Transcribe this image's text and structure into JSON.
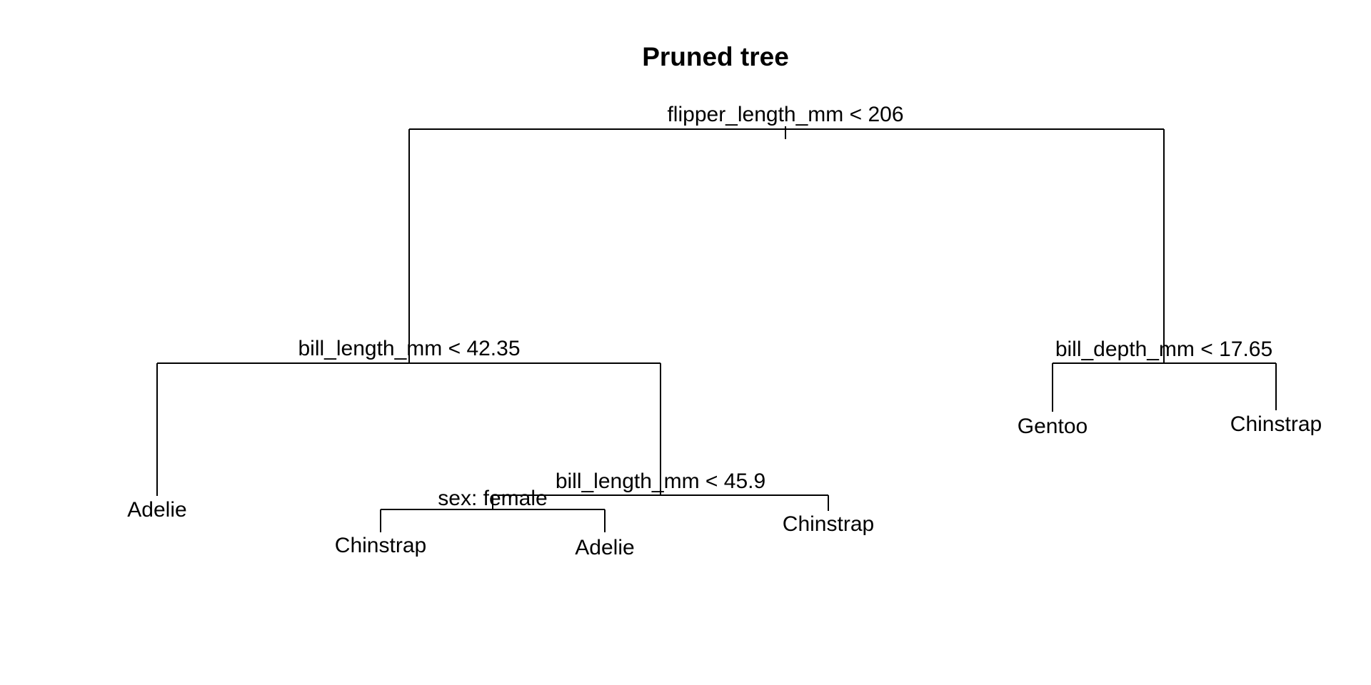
{
  "title": "Pruned tree",
  "tree": {
    "split": "flipper_length_mm < 206",
    "left": {
      "split": "bill_length_mm < 42.35",
      "left": {
        "leaf": "Adelie"
      },
      "right": {
        "split": "bill_length_mm < 45.9",
        "left": {
          "split": "sex: female",
          "left": {
            "leaf": "Chinstrap"
          },
          "right": {
            "leaf": "Adelie"
          }
        },
        "right": {
          "leaf": "Chinstrap"
        }
      }
    },
    "right": {
      "split": "bill_depth_mm < 17.65",
      "left": {
        "leaf": "Gentoo"
      },
      "right": {
        "leaf": "Chinstrap"
      }
    }
  }
}
